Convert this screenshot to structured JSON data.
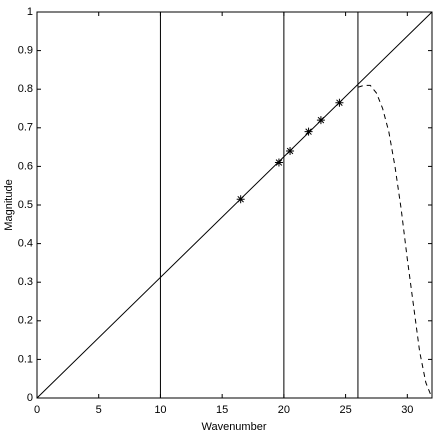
{
  "chart_data": {
    "type": "line",
    "x_label": "Wavenumber",
    "y_label": "Magnitude",
    "xlim": [
      0,
      32
    ],
    "ylim": [
      0,
      1
    ],
    "xticks": [
      0,
      5,
      10,
      15,
      20,
      25,
      30
    ],
    "yticks": [
      0,
      0.1,
      0.2,
      0.3,
      0.4,
      0.5,
      0.6,
      0.7,
      0.8,
      0.9,
      1
    ],
    "vlines": [
      10,
      20,
      26
    ],
    "series": [
      {
        "style": "solid",
        "color": "#000000",
        "x": [
          0,
          32
        ],
        "values": [
          0,
          1
        ]
      },
      {
        "style": "dashed",
        "color": "#000000",
        "x": [
          26,
          26.5,
          27,
          27.5,
          28,
          28.5,
          29,
          29.5,
          30,
          30.5,
          31,
          31.5,
          32
        ],
        "values": [
          0.805,
          0.81,
          0.81,
          0.79,
          0.75,
          0.69,
          0.6,
          0.49,
          0.36,
          0.24,
          0.12,
          0.04,
          0
        ]
      },
      {
        "style": "asterisk",
        "color": "#000000",
        "x": [
          16.5,
          19.6,
          20.5,
          22,
          23,
          24.5
        ],
        "values": [
          0.515,
          0.61,
          0.64,
          0.69,
          0.72,
          0.765
        ]
      }
    ]
  }
}
